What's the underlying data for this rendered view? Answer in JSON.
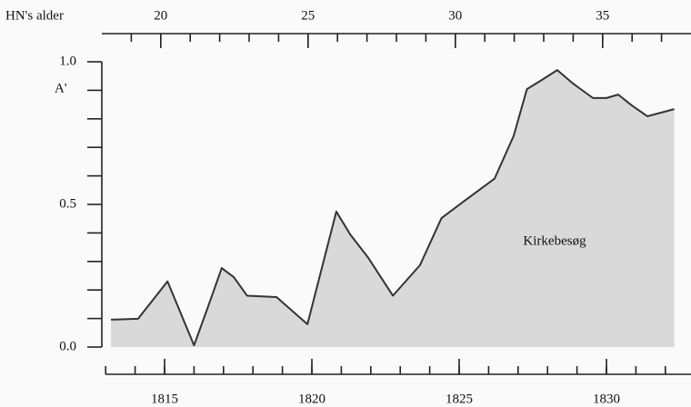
{
  "chart_data": {
    "type": "area",
    "x": [
      1813.18,
      1814.1,
      1815.1,
      1816.0,
      1816.45,
      1816.94,
      1817.35,
      1817.8,
      1818.8,
      1819.85,
      1820.83,
      1821.3,
      1821.9,
      1822.75,
      1823.67,
      1824.4,
      1825.15,
      1826.2,
      1826.85,
      1827.3,
      1827.8,
      1828.33,
      1828.86,
      1829.54,
      1830.0,
      1830.4,
      1830.86,
      1831.39,
      1832.3
    ],
    "series": [
      {
        "name": "Kirkebesøg",
        "color": "#d9d9d9",
        "line_color": "#333333",
        "values": [
          0.096,
          0.099,
          0.23,
          0.006,
          0.134,
          0.277,
          0.245,
          0.18,
          0.175,
          0.08,
          0.475,
          0.395,
          0.315,
          0.18,
          0.287,
          0.452,
          0.51,
          0.59,
          0.74,
          0.904,
          0.936,
          0.971,
          0.924,
          0.873,
          0.873,
          0.885,
          0.847,
          0.809,
          0.834
        ]
      }
    ],
    "xlim": [
      1812.87,
      1832.87
    ],
    "xticks": [
      1815,
      1820,
      1825,
      1830
    ],
    "xminorticks": [
      1813,
      1814,
      1815,
      1816,
      1817,
      1818,
      1819,
      1820,
      1821,
      1822,
      1823,
      1824,
      1825,
      1826,
      1827,
      1828,
      1829,
      1830,
      1831,
      1832
    ],
    "x2_label": "HN's alder",
    "x2lim": [
      18,
      38
    ],
    "x2ticks": [
      20,
      25,
      30,
      35
    ],
    "x2minorticks": [
      19,
      20,
      21,
      22,
      23,
      24,
      25,
      26,
      27,
      28,
      29,
      30,
      31,
      32,
      33,
      34,
      35,
      36,
      37
    ],
    "y_label": "A'",
    "ylim": [
      0,
      1
    ],
    "yticks": [
      {
        "value": 0,
        "label": "0.0"
      },
      {
        "value": 0.5,
        "label": "0.5"
      },
      {
        "value": 1,
        "label": "1.0"
      }
    ],
    "yminorticks": [
      0.1,
      0.2,
      0.3,
      0.4,
      0.6,
      0.7,
      0.8,
      0.9
    ]
  }
}
